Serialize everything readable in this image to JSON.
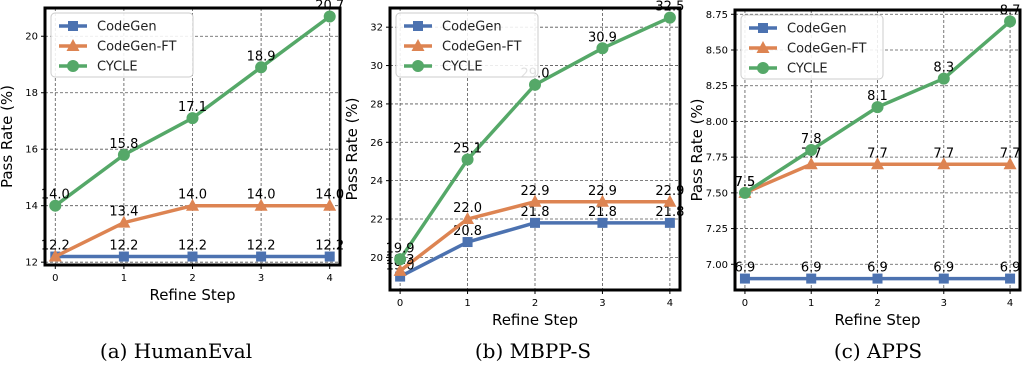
{
  "chart_data": [
    {
      "type": "line",
      "caption": "(a) HumanEval",
      "xlabel": "Refine Step",
      "ylabel": "Pass Rate (%)",
      "x": [
        0,
        1,
        2,
        3,
        4
      ],
      "ylim": [
        11.9,
        21.0
      ],
      "yticks": [
        12,
        14,
        16,
        18,
        20
      ],
      "series": [
        {
          "name": "CodeGen",
          "color": "#4c72b0",
          "marker": "square",
          "values": [
            12.2,
            12.2,
            12.2,
            12.2,
            12.2
          ],
          "labels": [
            "12.2",
            "12.2",
            "12.2",
            "12.2",
            "12.2"
          ]
        },
        {
          "name": "CodeGen-FT",
          "color": "#dd8452",
          "marker": "triangle",
          "values": [
            12.2,
            13.4,
            14.0,
            14.0,
            14.0
          ],
          "labels": [
            "",
            "13.4",
            "14.0",
            "14.0",
            "14.0"
          ]
        },
        {
          "name": "CYCLE",
          "color": "#55a868",
          "marker": "circle",
          "values": [
            14.0,
            15.8,
            17.1,
            18.9,
            20.7
          ],
          "labels": [
            "14.0",
            "15.8",
            "17.1",
            "18.9",
            "20.7"
          ]
        }
      ],
      "legend": "top-left",
      "grid": true
    },
    {
      "type": "line",
      "caption": "(b) MBPP-S",
      "xlabel": "Refine Step",
      "ylabel": "Pass Rate (%)",
      "x": [
        0,
        1,
        2,
        3,
        4
      ],
      "ylim": [
        18.3,
        33.0
      ],
      "yticks": [
        20,
        22,
        24,
        26,
        28,
        30,
        32
      ],
      "series": [
        {
          "name": "CodeGen",
          "color": "#4c72b0",
          "marker": "square",
          "values": [
            19.0,
            20.8,
            21.8,
            21.8,
            21.8
          ],
          "labels": [
            "19.0",
            "20.8",
            "21.8",
            "21.8",
            "21.8"
          ]
        },
        {
          "name": "CodeGen-FT",
          "color": "#dd8452",
          "marker": "triangle",
          "values": [
            19.3,
            22.0,
            22.9,
            22.9,
            22.9
          ],
          "labels": [
            "19.3",
            "22.0",
            "22.9",
            "22.9",
            "22.9"
          ]
        },
        {
          "name": "CYCLE",
          "color": "#55a868",
          "marker": "circle",
          "values": [
            19.9,
            25.1,
            29.0,
            30.9,
            32.5
          ],
          "labels": [
            "19.9",
            "25.1",
            "29.0",
            "30.9",
            "32.5"
          ]
        }
      ],
      "legend": "top-left",
      "grid": true
    },
    {
      "type": "line",
      "caption": "(c) APPS",
      "xlabel": "Refine Step",
      "ylabel": "Pass Rate (%)",
      "x": [
        0,
        1,
        2,
        3,
        4
      ],
      "ylim": [
        6.82,
        8.78
      ],
      "yticks": [
        7.0,
        7.25,
        7.5,
        7.75,
        8.0,
        8.25,
        8.5,
        8.75
      ],
      "ytick_labels": [
        "7.00",
        "7.25",
        "7.50",
        "7.75",
        "8.00",
        "8.25",
        "8.50",
        "8.75"
      ],
      "series": [
        {
          "name": "CodeGen",
          "color": "#4c72b0",
          "marker": "square",
          "values": [
            6.9,
            6.9,
            6.9,
            6.9,
            6.9
          ],
          "labels": [
            "6.9",
            "6.9",
            "6.9",
            "6.9",
            "6.9"
          ]
        },
        {
          "name": "CodeGen-FT",
          "color": "#dd8452",
          "marker": "triangle",
          "values": [
            7.5,
            7.7,
            7.7,
            7.7,
            7.7
          ],
          "labels": [
            "7.5",
            "7.7",
            "7.7",
            "7.7",
            "7.7"
          ]
        },
        {
          "name": "CYCLE",
          "color": "#55a868",
          "marker": "circle",
          "values": [
            7.5,
            7.8,
            8.1,
            8.3,
            8.7
          ],
          "labels": [
            "7.5",
            "7.8",
            "8.1",
            "8.3",
            "8.7"
          ]
        }
      ],
      "legend": "top-left",
      "grid": true
    }
  ]
}
